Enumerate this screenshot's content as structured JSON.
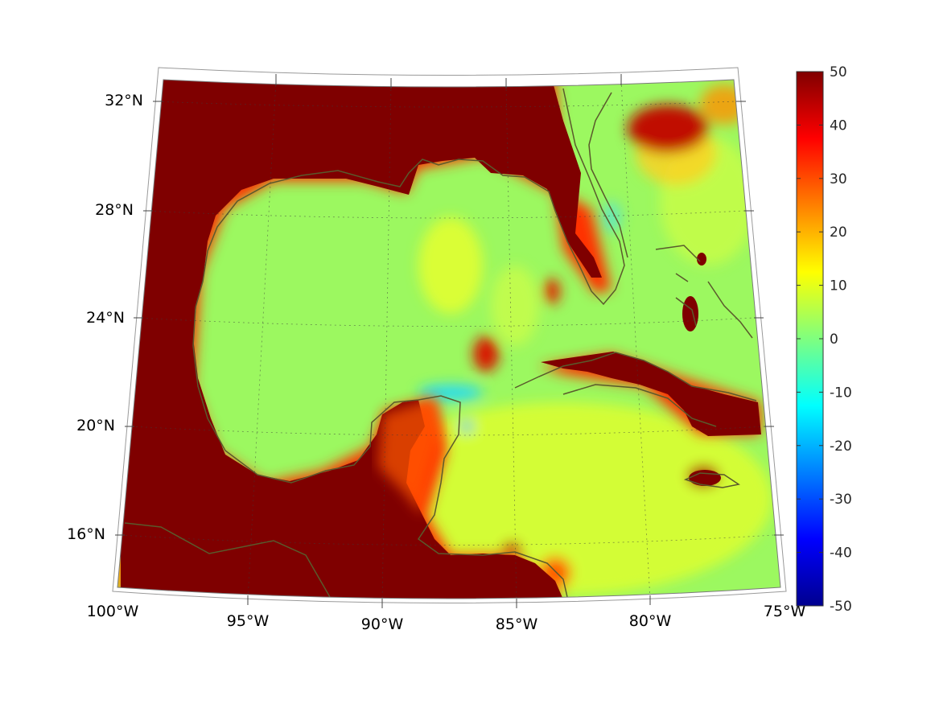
{
  "map": {
    "projection": "conic",
    "lon_range": [
      -100,
      -75
    ],
    "lat_range": [
      14.6,
      32.8
    ],
    "lat_ticks": [
      {
        "value": 32,
        "label": "32°N"
      },
      {
        "value": 28,
        "label": "28°N"
      },
      {
        "value": 24,
        "label": "24°N"
      },
      {
        "value": 20,
        "label": "20°N"
      },
      {
        "value": 16,
        "label": "16°N"
      }
    ],
    "lon_ticks": [
      {
        "value": -100,
        "label": "100°W"
      },
      {
        "value": -95,
        "label": "95°W"
      },
      {
        "value": -90,
        "label": "90°W"
      },
      {
        "value": -85,
        "label": "85°W"
      },
      {
        "value": -80,
        "label": "80°W"
      },
      {
        "value": -75,
        "label": "75°W"
      }
    ],
    "grid": true,
    "land_value": 50,
    "ocean_typical_value": 5
  },
  "colorbar": {
    "colormap": "jet",
    "range": [
      -50,
      50
    ],
    "ticks": [
      "50",
      "40",
      "30",
      "20",
      "10",
      "0",
      "-10",
      "-20",
      "-30",
      "-40",
      "-50"
    ]
  },
  "colors": {
    "land_saturated": "#7f0000",
    "ocean_typical": "#9afa5e",
    "coastline": "#555a2a"
  }
}
